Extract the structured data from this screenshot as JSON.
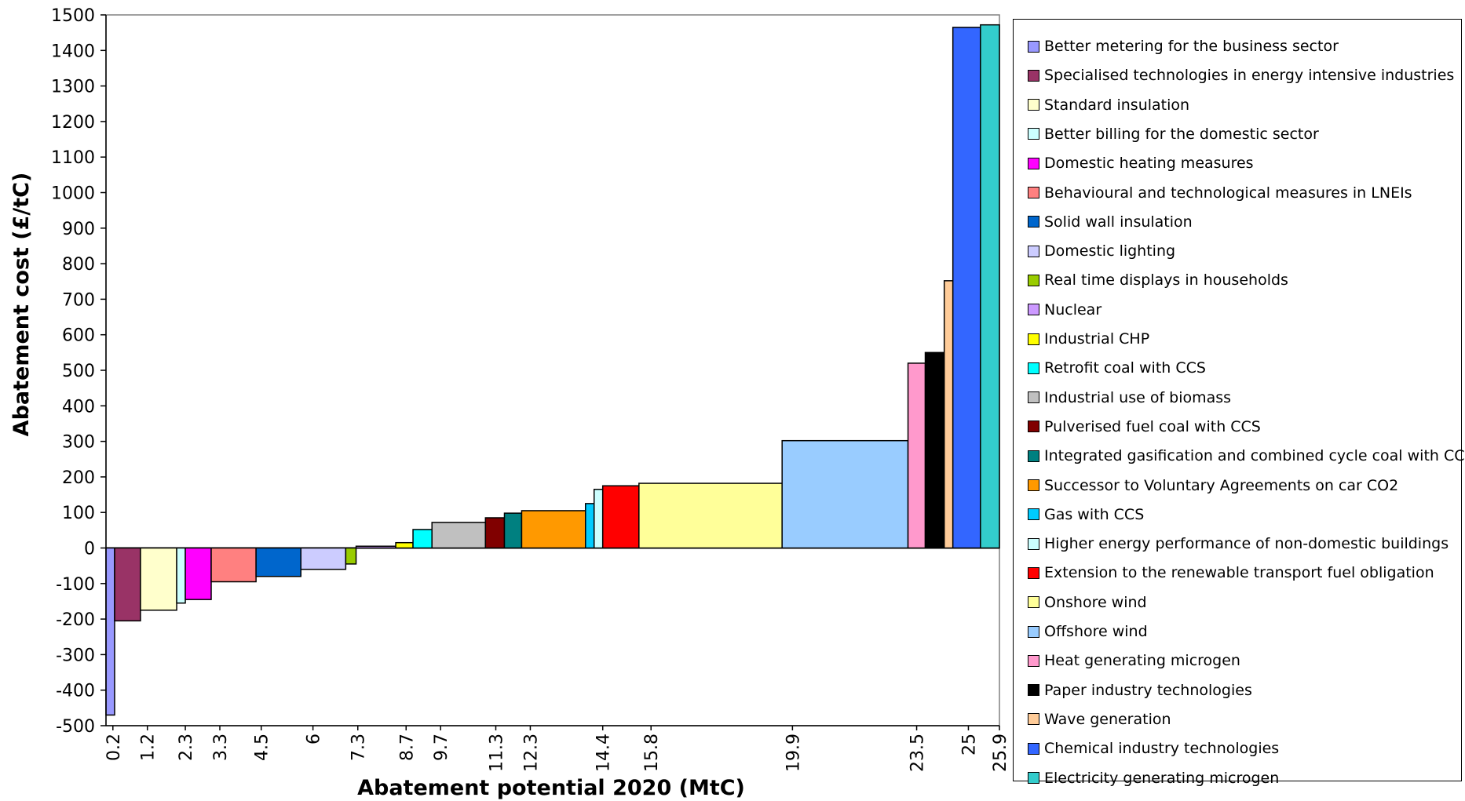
{
  "chart_data": {
    "type": "bar",
    "subtype": "marginal-abatement-cost-curve",
    "xlabel": "Abatement potential 2020 (MtC)",
    "ylabel": "Abatement cost (£/tC)",
    "ylim": [
      -500,
      1500
    ],
    "xlim": [
      0,
      25.9
    ],
    "y_ticks": [
      -500,
      -400,
      -300,
      -200,
      -100,
      0,
      100,
      200,
      300,
      400,
      500,
      600,
      700,
      800,
      900,
      1000,
      1100,
      1200,
      1300,
      1400,
      1500
    ],
    "x_tick_labels": [
      "0.2",
      "1.2",
      "2.3",
      "3.3",
      "4.5",
      "6",
      "7.3",
      "8.7",
      "9.7",
      "11.3",
      "12.3",
      "14.4",
      "15.8",
      "19.9",
      "23.5",
      "25",
      "25.9"
    ],
    "x_tick_values": [
      0.2,
      1.2,
      2.3,
      3.3,
      4.5,
      6,
      7.3,
      8.7,
      9.7,
      11.3,
      12.3,
      14.4,
      15.8,
      19.9,
      23.5,
      25,
      25.9
    ],
    "legend_position": "right",
    "grid": false,
    "series": [
      {
        "name": "Better metering for the business sector",
        "x_start": 0.0,
        "x_end": 0.25,
        "value": -470,
        "color": "#9999FF"
      },
      {
        "name": "Specialised technologies in energy intensive industries",
        "x_start": 0.25,
        "x_end": 1.0,
        "value": -205,
        "color": "#993366"
      },
      {
        "name": "Standard insulation",
        "x_start": 1.0,
        "x_end": 2.05,
        "value": -175,
        "color": "#FFFFCC"
      },
      {
        "name": "Better billing for the domestic sector",
        "x_start": 2.05,
        "x_end": 2.3,
        "value": -155,
        "color": "#CCFFFF"
      },
      {
        "name": "Domestic heating measures",
        "x_start": 2.3,
        "x_end": 3.05,
        "value": -145,
        "color": "#FF00FF"
      },
      {
        "name": "Behavioural and technological measures in LNEIs",
        "x_start": 3.05,
        "x_end": 4.35,
        "value": -95,
        "color": "#FF8080"
      },
      {
        "name": "Solid wall insulation",
        "x_start": 4.35,
        "x_end": 5.65,
        "value": -80,
        "color": "#0066CC"
      },
      {
        "name": "Domestic lighting",
        "x_start": 5.65,
        "x_end": 6.95,
        "value": -60,
        "color": "#CCCCFF"
      },
      {
        "name": "Real time displays in households",
        "x_start": 6.95,
        "x_end": 7.25,
        "value": -45,
        "color": "#99CC00"
      },
      {
        "name": "Nuclear",
        "x_start": 7.25,
        "x_end": 8.4,
        "value": 5,
        "color": "#CC99FF"
      },
      {
        "name": "Industrial CHP",
        "x_start": 8.4,
        "x_end": 8.9,
        "value": 15,
        "color": "#FFFF00"
      },
      {
        "name": "Retrofit coal with CCS",
        "x_start": 8.9,
        "x_end": 9.45,
        "value": 52,
        "color": "#00FFFF"
      },
      {
        "name": "Industrial use of biomass",
        "x_start": 9.45,
        "x_end": 11.0,
        "value": 72,
        "color": "#C0C0C0"
      },
      {
        "name": "Pulverised fuel coal with CCS",
        "x_start": 11.0,
        "x_end": 11.55,
        "value": 85,
        "color": "#800000"
      },
      {
        "name": "Integrated gasification and combined cycle coal with CCS",
        "x_start": 11.55,
        "x_end": 12.05,
        "value": 98,
        "color": "#008080"
      },
      {
        "name": "Successor to Voluntary Agreements on car CO2",
        "x_start": 12.05,
        "x_end": 13.9,
        "value": 105,
        "color": "#FF9900"
      },
      {
        "name": "Gas with CCS",
        "x_start": 13.9,
        "x_end": 14.15,
        "value": 125,
        "color": "#00CCFF"
      },
      {
        "name": "Higher energy performance of non-domestic buildings",
        "x_start": 14.15,
        "x_end": 14.4,
        "value": 165,
        "color": "#CCFFFF"
      },
      {
        "name": "Extension to the renewable transport fuel obligation",
        "x_start": 14.4,
        "x_end": 15.45,
        "value": 175,
        "color": "#FF0000"
      },
      {
        "name": "Onshore wind",
        "x_start": 15.45,
        "x_end": 19.6,
        "value": 182,
        "color": "#FFFF99"
      },
      {
        "name": "Offshore wind",
        "x_start": 19.6,
        "x_end": 23.25,
        "value": 302,
        "color": "#99CCFF"
      },
      {
        "name": "Heat generating microgen",
        "x_start": 23.25,
        "x_end": 23.75,
        "value": 520,
        "color": "#FF99CC"
      },
      {
        "name": "Paper industry technologies",
        "x_start": 23.75,
        "x_end": 24.3,
        "value": 550,
        "color": "#000000"
      },
      {
        "name": "Wave generation",
        "x_start": 24.3,
        "x_end": 24.55,
        "value": 752,
        "color": "#FFCC99"
      },
      {
        "name": "Chemical industry technologies",
        "x_start": 24.55,
        "x_end": 25.35,
        "value": 1465,
        "color": "#3366FF"
      },
      {
        "name": "Electricity generating microgen",
        "x_start": 25.35,
        "x_end": 25.9,
        "value": 1472,
        "color": "#33CCCC"
      }
    ]
  }
}
